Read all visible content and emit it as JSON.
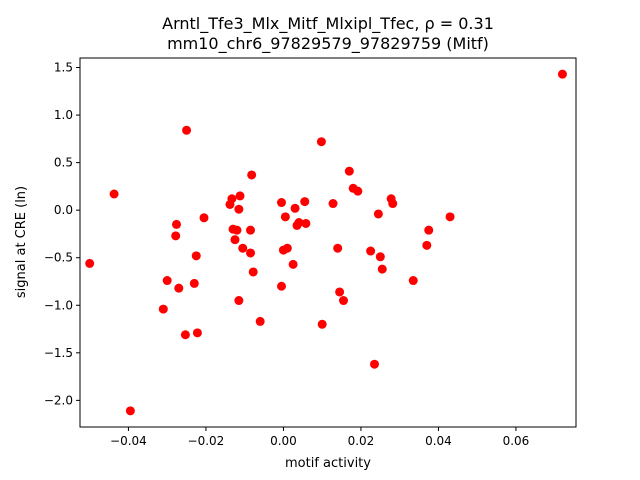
{
  "chart_data": {
    "type": "scatter",
    "title_line1": "Arntl_Tfe3_Mlx_Mitf_Mlxipl_Tfec, ρ = 0.31",
    "title_line2": "mm10_chr6_97829579_97829759 (Mitf)",
    "xlabel": "motif activity",
    "ylabel": "signal at CRE (ln)",
    "xlim": [
      -0.0525,
      0.0755
    ],
    "ylim": [
      -2.28,
      1.6
    ],
    "x_ticks": [
      {
        "value": -0.04,
        "label": "−0.04"
      },
      {
        "value": -0.02,
        "label": "−0.02"
      },
      {
        "value": 0.0,
        "label": "0.00"
      },
      {
        "value": 0.02,
        "label": "0.02"
      },
      {
        "value": 0.04,
        "label": "0.04"
      },
      {
        "value": 0.06,
        "label": "0.06"
      }
    ],
    "y_ticks": [
      {
        "value": -2.0,
        "label": "−2.0"
      },
      {
        "value": -1.5,
        "label": "−1.5"
      },
      {
        "value": -1.0,
        "label": "−1.0"
      },
      {
        "value": -0.5,
        "label": "−0.5"
      },
      {
        "value": 0.0,
        "label": "0.0"
      },
      {
        "value": 0.5,
        "label": "0.5"
      },
      {
        "value": 1.0,
        "label": "1.0"
      },
      {
        "value": 1.5,
        "label": "1.5"
      }
    ],
    "grid": false,
    "marker_color": "#ff0000",
    "points": [
      {
        "x": -0.05,
        "y": -0.56
      },
      {
        "x": -0.0437,
        "y": 0.17
      },
      {
        "x": -0.0395,
        "y": -2.11
      },
      {
        "x": -0.031,
        "y": -1.04
      },
      {
        "x": -0.03,
        "y": -0.74
      },
      {
        "x": -0.0278,
        "y": -0.27
      },
      {
        "x": -0.0276,
        "y": -0.15
      },
      {
        "x": -0.027,
        "y": -0.82
      },
      {
        "x": -0.0253,
        "y": -1.31
      },
      {
        "x": -0.025,
        "y": 0.84
      },
      {
        "x": -0.023,
        "y": -0.77
      },
      {
        "x": -0.0225,
        "y": -0.48
      },
      {
        "x": -0.0222,
        "y": -1.29
      },
      {
        "x": -0.0205,
        "y": -0.08
      },
      {
        "x": -0.0138,
        "y": 0.06
      },
      {
        "x": -0.0133,
        "y": 0.12
      },
      {
        "x": -0.013,
        "y": -0.2
      },
      {
        "x": -0.0125,
        "y": -0.31
      },
      {
        "x": -0.012,
        "y": -0.21
      },
      {
        "x": -0.0115,
        "y": 0.01
      },
      {
        "x": -0.0115,
        "y": -0.95
      },
      {
        "x": -0.0112,
        "y": 0.15
      },
      {
        "x": -0.0105,
        "y": -0.4
      },
      {
        "x": -0.0085,
        "y": -0.45
      },
      {
        "x": -0.0085,
        "y": -0.21
      },
      {
        "x": -0.0082,
        "y": 0.37
      },
      {
        "x": -0.0078,
        "y": -0.65
      },
      {
        "x": -0.006,
        "y": -1.17
      },
      {
        "x": -0.0005,
        "y": 0.08
      },
      {
        "x": -0.0005,
        "y": -0.8
      },
      {
        "x": 0.0,
        "y": -0.42
      },
      {
        "x": 0.0005,
        "y": -0.07
      },
      {
        "x": 0.001,
        "y": -0.4
      },
      {
        "x": 0.0025,
        "y": -0.57
      },
      {
        "x": 0.003,
        "y": 0.02
      },
      {
        "x": 0.0035,
        "y": -0.16
      },
      {
        "x": 0.004,
        "y": -0.13
      },
      {
        "x": 0.0055,
        "y": 0.09
      },
      {
        "x": 0.0058,
        "y": -0.14
      },
      {
        "x": 0.0098,
        "y": 0.72
      },
      {
        "x": 0.01,
        "y": -1.2
      },
      {
        "x": 0.0128,
        "y": 0.07
      },
      {
        "x": 0.014,
        "y": -0.4
      },
      {
        "x": 0.0145,
        "y": -0.86
      },
      {
        "x": 0.0155,
        "y": -0.95
      },
      {
        "x": 0.017,
        "y": 0.41
      },
      {
        "x": 0.018,
        "y": 0.23
      },
      {
        "x": 0.0192,
        "y": 0.2
      },
      {
        "x": 0.0225,
        "y": -0.43
      },
      {
        "x": 0.0235,
        "y": -1.62
      },
      {
        "x": 0.0245,
        "y": -0.04
      },
      {
        "x": 0.025,
        "y": -0.49
      },
      {
        "x": 0.0255,
        "y": -0.62
      },
      {
        "x": 0.0278,
        "y": 0.12
      },
      {
        "x": 0.0282,
        "y": 0.07
      },
      {
        "x": 0.0335,
        "y": -0.74
      },
      {
        "x": 0.037,
        "y": -0.37
      },
      {
        "x": 0.0375,
        "y": -0.21
      },
      {
        "x": 0.043,
        "y": -0.07
      },
      {
        "x": 0.072,
        "y": 1.43
      }
    ]
  }
}
